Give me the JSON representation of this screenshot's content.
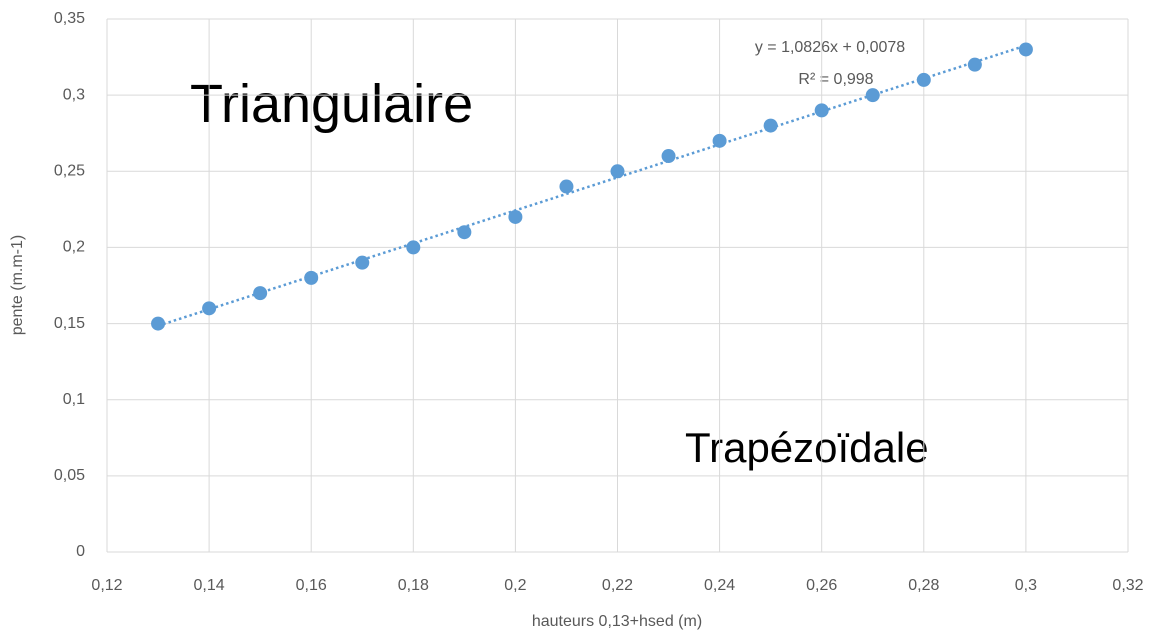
{
  "chart_data": {
    "type": "scatter",
    "x_label": "hauteurs 0,13+hsed (m)",
    "y_label": "pente (m.m-1)",
    "x": [
      0.13,
      0.14,
      0.15,
      0.16,
      0.17,
      0.18,
      0.19,
      0.2,
      0.21,
      0.22,
      0.23,
      0.24,
      0.25,
      0.26,
      0.27,
      0.28,
      0.29,
      0.3
    ],
    "series": [
      {
        "color": "#5b9bd5",
        "values": [
          0.15,
          0.16,
          0.17,
          0.18,
          0.19,
          0.2,
          0.21,
          0.22,
          0.24,
          0.25,
          0.26,
          0.27,
          0.28,
          0.29,
          0.3,
          0.31,
          0.32,
          0.33
        ]
      }
    ],
    "trendline": {
      "slope": 1.0826,
      "intercept": 0.0078,
      "equation": "y = 1,0826x + 0,0078",
      "r2_label": "R² = 0,998"
    },
    "annotations": [
      "Triangulaire",
      "Trapézoïdale"
    ],
    "xlim": [
      0.12,
      0.32
    ],
    "xticks": [
      {
        "value": 0.12,
        "label": "0,12"
      },
      {
        "value": 0.14,
        "label": "0,14"
      },
      {
        "value": 0.16,
        "label": "0,16"
      },
      {
        "value": 0.18,
        "label": "0,18"
      },
      {
        "value": 0.2,
        "label": "0,2"
      },
      {
        "value": 0.22,
        "label": "0,22"
      },
      {
        "value": 0.24,
        "label": "0,24"
      },
      {
        "value": 0.26,
        "label": "0,26"
      },
      {
        "value": 0.28,
        "label": "0,28"
      },
      {
        "value": 0.3,
        "label": "0,3"
      },
      {
        "value": 0.32,
        "label": "0,32"
      }
    ],
    "ylim": [
      0,
      0.35
    ],
    "yticks": [
      0,
      {
        "value": 0.05,
        "label": "0,05"
      },
      {
        "value": 0.1,
        "label": "0,1"
      },
      {
        "value": 0.15,
        "label": "0,15"
      },
      {
        "value": 0.2,
        "label": "0,2"
      },
      {
        "value": 0.25,
        "label": "0,25"
      },
      {
        "value": 0.3,
        "label": "0,3"
      },
      {
        "value": 0.35,
        "label": "0,35"
      }
    ],
    "grid": true
  }
}
